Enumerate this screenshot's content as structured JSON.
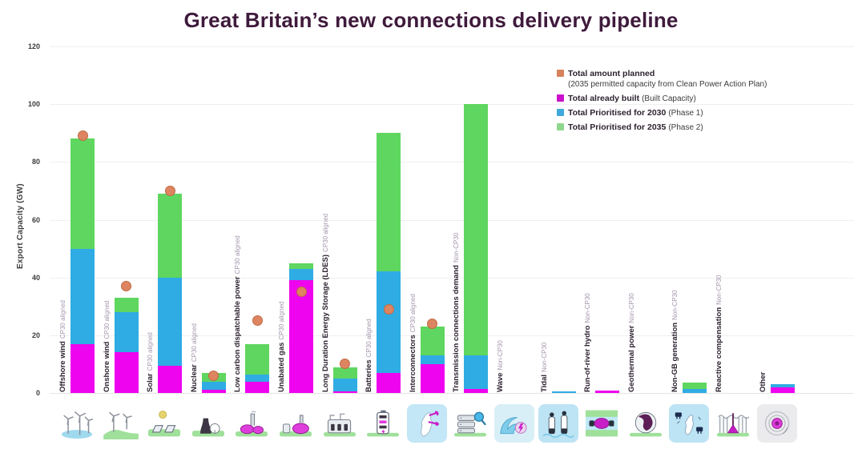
{
  "title": "Great Britain’s new connections delivery pipeline",
  "colors": {
    "built": "#ef04ef",
    "prioritised_2030": "#2face3",
    "prioritised_2035": "#5fd65f",
    "planned_dot": "#dd8560",
    "planned_dot_border": "#c06a45",
    "title_text": "#3f1a3c"
  },
  "legend": [
    {
      "key": "planned",
      "label": "Total amount planned",
      "sublabel": "(2035 permitted capacity from Clean Power Action Plan)",
      "color": "#d6825c"
    },
    {
      "key": "built",
      "label": "Total already built",
      "sublabel": "(Built Capacity)",
      "color": "#cc10cc"
    },
    {
      "key": "p2030",
      "label": "Total Prioritised for 2030",
      "sublabel": "(Phase 1)",
      "color": "#3fa9dc"
    },
    {
      "key": "p2035",
      "label": "Total Prioritised for 2035",
      "sublabel": "(Phase 2)",
      "color": "#8ed88e"
    }
  ],
  "chart_data": {
    "type": "bar",
    "stacked": true,
    "title": "Great Britain’s new connections delivery pipeline",
    "ylabel": "Export Capacity (GW)",
    "units": "GW",
    "ylim": [
      0,
      120
    ],
    "yticks": [
      0,
      20,
      40,
      60,
      80,
      100,
      120
    ],
    "grid": true,
    "legend_position": "upper right",
    "series_names": [
      "built",
      "prioritised_2030",
      "prioritised_2035"
    ],
    "categories": [
      {
        "label": "Offshore wind",
        "suffix": "CP30 aligned",
        "icon": "offshore-wind-icon",
        "icon_bg": "#ffffff",
        "built": 17,
        "prioritised_2030": 33,
        "prioritised_2035": 38,
        "planned_total": 89
      },
      {
        "label": "Onshore wind",
        "suffix": "CP30 aligned",
        "icon": "onshore-wind-icon",
        "icon_bg": "#ffffff",
        "built": 14,
        "prioritised_2030": 14,
        "prioritised_2035": 5,
        "planned_total": 37
      },
      {
        "label": "Solar",
        "suffix": "CP30 aligned",
        "icon": "solar-icon",
        "icon_bg": "#ffffff",
        "built": 9.5,
        "prioritised_2030": 30.5,
        "prioritised_2035": 29,
        "planned_total": 70
      },
      {
        "label": "Nuclear",
        "suffix": "CP30 aligned",
        "icon": "nuclear-icon",
        "icon_bg": "#ffffff",
        "built": 1,
        "prioritised_2030": 3,
        "prioritised_2035": 3,
        "planned_total": 6
      },
      {
        "label": "Low carbon dispatchable power",
        "suffix": "CP30 aligned",
        "icon": "low-carbon-plant-icon",
        "icon_bg": "#ffffff",
        "built": 4,
        "prioritised_2030": 2.5,
        "prioritised_2035": 10.5,
        "planned_total": 25
      },
      {
        "label": "Unabated gas",
        "suffix": "CP30 aligned",
        "icon": "gas-plant-icon",
        "icon_bg": "#ffffff",
        "built": 39,
        "prioritised_2030": 4,
        "prioritised_2035": 2,
        "planned_total": 35
      },
      {
        "label": "Long Duration Energy Storage (LDES)",
        "suffix": "CP30 aligned",
        "icon": "ldes-icon",
        "icon_bg": "#ffffff",
        "built": 0.5,
        "prioritised_2030": 4.5,
        "prioritised_2035": 4,
        "planned_total": 10
      },
      {
        "label": "Batteries",
        "suffix": "CP30 aligned",
        "icon": "battery-icon",
        "icon_bg": "#ffffff",
        "built": 7,
        "prioritised_2030": 35,
        "prioritised_2035": 48,
        "planned_total": 29
      },
      {
        "label": "Interconnectors",
        "suffix": "CP30 aligned",
        "icon": "interconnectors-icon",
        "icon_bg": "#c3e7f6",
        "built": 10,
        "prioritised_2030": 3,
        "prioritised_2035": 10,
        "planned_total": 24
      },
      {
        "label": "Transmission connections demand",
        "suffix": "Non-CP30",
        "icon": "transmission-demand-icon",
        "icon_bg": "#ffffff",
        "built": 1.5,
        "prioritised_2030": 11.5,
        "prioritised_2035": 87,
        "planned_total": null
      },
      {
        "label": "Wave",
        "suffix": "Non-CP30",
        "icon": "wave-icon",
        "icon_bg": "#d9eff8",
        "built": 0,
        "prioritised_2030": 0,
        "prioritised_2035": 0,
        "planned_total": null
      },
      {
        "label": "Tidal",
        "suffix": "Non-CP30",
        "icon": "tidal-icon",
        "icon_bg": "#bde4f4",
        "built": 0,
        "prioritised_2030": 0.5,
        "prioritised_2035": 0,
        "planned_total": null
      },
      {
        "label": "Run-of-river hydro",
        "suffix": "Non-CP30",
        "icon": "run-of-river-hydro-icon",
        "icon_bg": "#ffffff",
        "built": 0.7,
        "prioritised_2030": 0,
        "prioritised_2035": 0,
        "planned_total": null
      },
      {
        "label": "Geothermal power",
        "suffix": "Non-CP30",
        "icon": "geothermal-icon",
        "icon_bg": "#ffffff",
        "built": 0,
        "prioritised_2030": 0,
        "prioritised_2035": 0,
        "planned_total": null
      },
      {
        "label": "Non-GB generation",
        "suffix": "Non-CP30",
        "icon": "non-gb-generation-icon",
        "icon_bg": "#bde4f4",
        "built": 0,
        "prioritised_2030": 1.5,
        "prioritised_2035": 2,
        "planned_total": null
      },
      {
        "label": "Reactive compensation",
        "suffix": "Non-CP30",
        "icon": "reactive-compensation-icon",
        "icon_bg": "#ffffff",
        "built": 0,
        "prioritised_2030": 0,
        "prioritised_2035": 0,
        "planned_total": null
      },
      {
        "label": "Other",
        "suffix": "",
        "icon": "other-icon",
        "icon_bg": "#ebebed",
        "built": 2,
        "prioritised_2030": 1,
        "prioritised_2035": 0,
        "planned_total": null
      }
    ]
  }
}
